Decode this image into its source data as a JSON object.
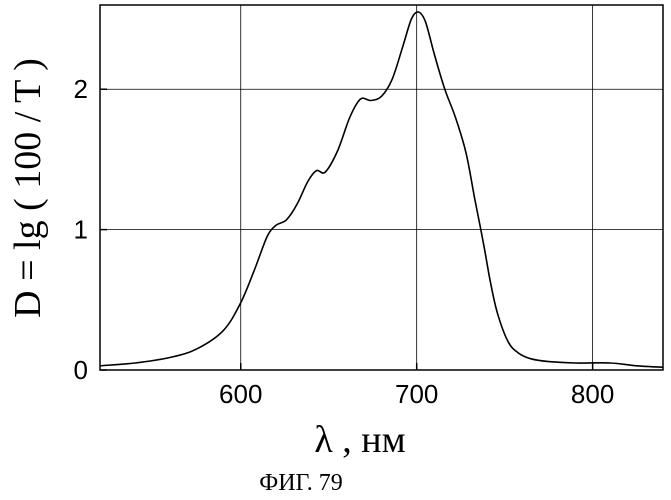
{
  "chart_data": {
    "type": "line",
    "title": "",
    "xlabel": "λ , нм",
    "ylabel": "D = lg ( 100 / T )",
    "xlim": [
      520,
      840
    ],
    "ylim": [
      0,
      2.6
    ],
    "x_ticks": [
      600,
      700,
      800
    ],
    "y_ticks": [
      0,
      1,
      2
    ],
    "x_tick_labels": [
      "600",
      "700",
      "800"
    ],
    "y_tick_labels": [
      "0",
      "1",
      "2"
    ],
    "grid": true,
    "series": [
      {
        "color": "#000000",
        "x": [
          520,
          540,
          560,
          575,
          590,
          600,
          608,
          615,
          620,
          626,
          632,
          638,
          643,
          648,
          655,
          662,
          668,
          674,
          680,
          686,
          692,
          697,
          701,
          705,
          710,
          716,
          722,
          728,
          733,
          738,
          742,
          746,
          752,
          758,
          765,
          775,
          790,
          810,
          825,
          840
        ],
        "values": [
          0.03,
          0.05,
          0.09,
          0.15,
          0.28,
          0.48,
          0.72,
          0.95,
          1.03,
          1.07,
          1.18,
          1.34,
          1.42,
          1.41,
          1.56,
          1.8,
          1.93,
          1.92,
          1.95,
          2.07,
          2.3,
          2.5,
          2.55,
          2.48,
          2.25,
          2.0,
          1.8,
          1.55,
          1.22,
          0.9,
          0.62,
          0.4,
          0.2,
          0.12,
          0.08,
          0.06,
          0.05,
          0.05,
          0.03,
          0.02
        ]
      }
    ]
  },
  "caption": "ФИГ. 79"
}
